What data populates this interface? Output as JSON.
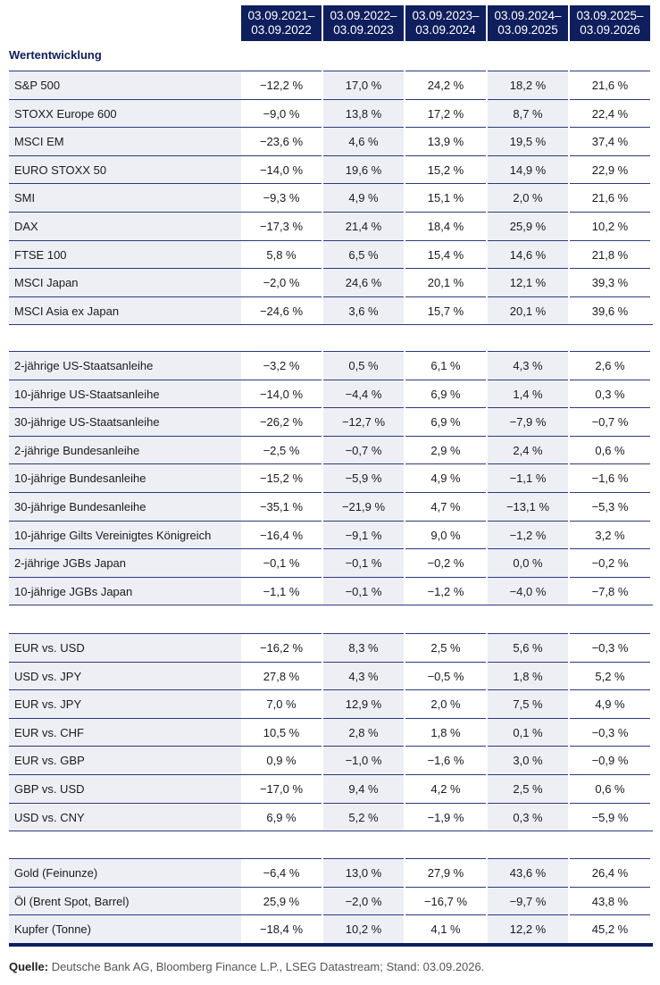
{
  "header": {
    "columns": [
      {
        "line1": "03.09.2021–",
        "line2": "03.09.2022"
      },
      {
        "line1": "03.09.2022–",
        "line2": "03.09.2023"
      },
      {
        "line1": "03.09.2023–",
        "line2": "03.09.2024"
      },
      {
        "line1": "03.09.2024–",
        "line2": "03.09.2025"
      },
      {
        "line1": "03.09.2025–",
        "line2": "03.09.2026"
      }
    ]
  },
  "section_title": "Wertentwicklung",
  "groups": [
    {
      "rows": [
        {
          "label": "S&P 500",
          "values": [
            "−12,2 %",
            "17,0 %",
            "24,2 %",
            "18,2 %",
            "21,6 %"
          ]
        },
        {
          "label": "STOXX Europe 600",
          "values": [
            "−9,0 %",
            "13,8 %",
            "17,2 %",
            "8,7 %",
            "22,4 %"
          ]
        },
        {
          "label": "MSCI EM",
          "values": [
            "−23,6 %",
            "4,6 %",
            "13,9 %",
            "19,5 %",
            "37,4 %"
          ]
        },
        {
          "label": "EURO STOXX 50",
          "values": [
            "−14,0 %",
            "19,6 %",
            "15,2 %",
            "14,9 %",
            "22,9 %"
          ]
        },
        {
          "label": "SMI",
          "values": [
            "−9,3 %",
            "4,9 %",
            "15,1 %",
            "2,0 %",
            "21,6 %"
          ]
        },
        {
          "label": "DAX",
          "values": [
            "−17,3 %",
            "21,4 %",
            "18,4 %",
            "25,9 %",
            "10,2 %"
          ]
        },
        {
          "label": "FTSE 100",
          "values": [
            "5,8 %",
            "6,5 %",
            "15,4 %",
            "14,6 %",
            "21,8 %"
          ]
        },
        {
          "label": "MSCI Japan",
          "values": [
            "−2,0 %",
            "24,6 %",
            "20,1 %",
            "12,1 %",
            "39,3 %"
          ]
        },
        {
          "label": "MSCI Asia ex Japan",
          "values": [
            "−24,6 %",
            "3,6 %",
            "15,7 %",
            "20,1 %",
            "39,6 %"
          ]
        }
      ]
    },
    {
      "rows": [
        {
          "label": "2-jährige US-Staatsanleihe",
          "values": [
            "−3,2 %",
            "0,5 %",
            "6,1 %",
            "4,3 %",
            "2,6 %"
          ]
        },
        {
          "label": "10-jährige US-Staatsanleihe",
          "values": [
            "−14,0 %",
            "−4,4 %",
            "6,9 %",
            "1,4 %",
            "0,3 %"
          ]
        },
        {
          "label": "30-jährige US-Staatsanleihe",
          "values": [
            "−26,2 %",
            "−12,7 %",
            "6,9 %",
            "−7,9 %",
            "−0,7 %"
          ]
        },
        {
          "label": "2-jährige Bundesanleihe",
          "values": [
            "−2,5 %",
            "−0,7 %",
            "2,9 %",
            "2,4 %",
            "0,6 %"
          ]
        },
        {
          "label": "10-jährige Bundesanleihe",
          "values": [
            "−15,2 %",
            "−5,9 %",
            "4,9 %",
            "−1,1 %",
            "−1,6 %"
          ]
        },
        {
          "label": "30-jährige Bundesanleihe",
          "values": [
            "−35,1 %",
            "−21,9 %",
            "4,7 %",
            "−13,1 %",
            "−5,3 %"
          ]
        },
        {
          "label": "10-jährige Gilts Vereinigtes Königreich",
          "values": [
            "−16,4 %",
            "−9,1 %",
            "9,0 %",
            "−1,2 %",
            "3,2 %"
          ]
        },
        {
          "label": "2-jährige JGBs Japan",
          "values": [
            "−0,1 %",
            "−0,1 %",
            "−0,2 %",
            "0,0 %",
            "−0,2 %"
          ]
        },
        {
          "label": "10-jährige JGBs Japan",
          "values": [
            "−1,1 %",
            "−0,1 %",
            "−1,2 %",
            "−4,0 %",
            "−7,8 %"
          ]
        }
      ]
    },
    {
      "rows": [
        {
          "label": "EUR vs. USD",
          "values": [
            "−16,2 %",
            "8,3 %",
            "2,5 %",
            "5,6 %",
            "−0,3 %"
          ]
        },
        {
          "label": "USD vs. JPY",
          "values": [
            "27,8 %",
            "4,3 %",
            "−0,5 %",
            "1,8 %",
            "5,2 %"
          ]
        },
        {
          "label": "EUR vs. JPY",
          "values": [
            "7,0 %",
            "12,9 %",
            "2,0 %",
            "7,5 %",
            "4,9 %"
          ]
        },
        {
          "label": "EUR vs. CHF",
          "values": [
            "10,5 %",
            "2,8 %",
            "1,8 %",
            "0,1 %",
            "−0,3 %"
          ]
        },
        {
          "label": "EUR vs. GBP",
          "values": [
            "0,9 %",
            "−1,0 %",
            "−1,6 %",
            "3,0 %",
            "−0,9 %"
          ]
        },
        {
          "label": "GBP vs. USD",
          "values": [
            "−17,0 %",
            "9,4 %",
            "4,2 %",
            "2,5 %",
            "0,6 %"
          ]
        },
        {
          "label": "USD vs. CNY",
          "values": [
            "6,9 %",
            "5,2 %",
            "−1,9 %",
            "0,3 %",
            "−5,9 %"
          ]
        }
      ]
    },
    {
      "rows": [
        {
          "label": "Gold (Feinunze)",
          "values": [
            "−6,4 %",
            "13,0 %",
            "27,9 %",
            "43,6 %",
            "26,4 %"
          ]
        },
        {
          "label": "Öl (Brent Spot, Barrel)",
          "values": [
            "25,9 %",
            "−2,0 %",
            "−16,7 %",
            "−9,7 %",
            "43,8 %"
          ]
        },
        {
          "label": "Kupfer (Tonne)",
          "values": [
            "−18,4 %",
            "10,2 %",
            "4,1 %",
            "12,2 %",
            "45,2 %"
          ]
        }
      ]
    }
  ],
  "footer": {
    "label": "Quelle:",
    "text": " Deutsche Bank AG, Bloomberg Finance L.P., LSEG Datastream; Stand: 03.09.2026."
  },
  "colors": {
    "header_bg": "#0f1e5c",
    "row_shade": "#eeeff5",
    "rule": "#2c3a7a"
  }
}
